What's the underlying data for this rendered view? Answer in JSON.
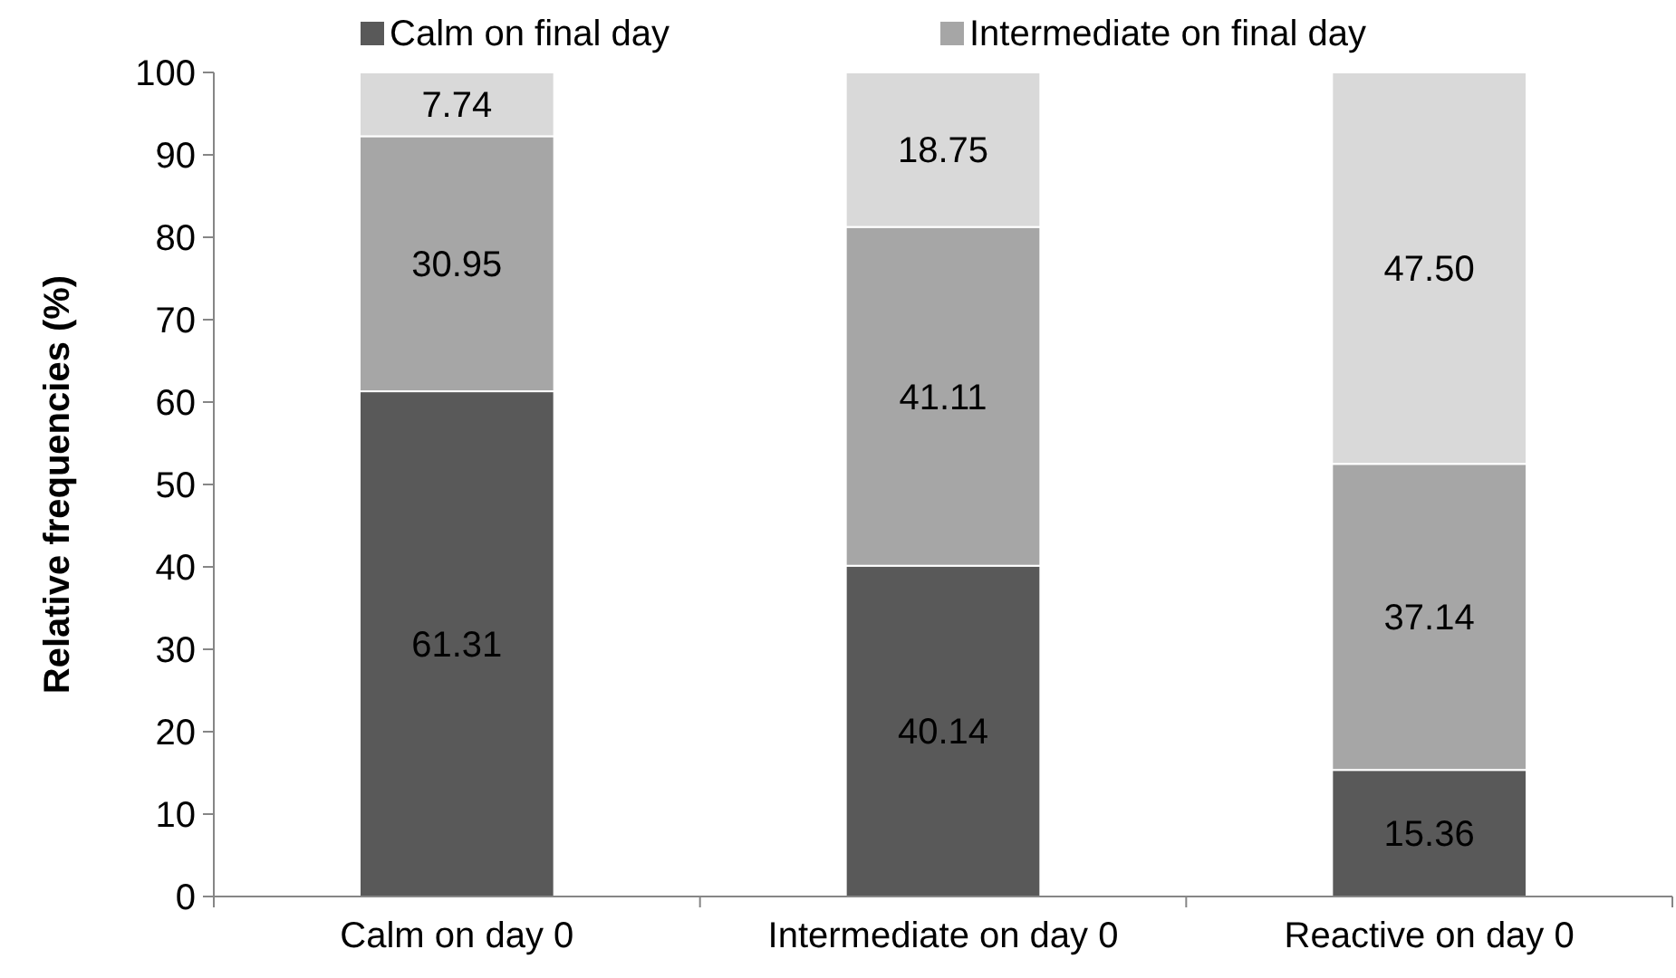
{
  "chart_data": {
    "type": "bar",
    "stacked": true,
    "ylabel": "Relative frequencies (%)",
    "categories": [
      "Calm on day 0",
      "Intermediate on day 0",
      "Reactive on day 0"
    ],
    "series": [
      {
        "name": "Calm on final day",
        "color": "#595959",
        "values": [
          61.31,
          40.14,
          15.36
        ],
        "value_labels": [
          "61.31",
          "40.14",
          "15.36"
        ]
      },
      {
        "name": "Intermediate on final day",
        "color": "#a6a6a6",
        "values": [
          30.95,
          41.11,
          37.14
        ],
        "value_labels": [
          "30.95",
          "41.11",
          "37.14"
        ]
      },
      {
        "color": "#d9d9d9",
        "values": [
          7.74,
          18.75,
          47.5
        ],
        "value_labels": [
          "7.74",
          "18.75",
          "47.50"
        ]
      }
    ],
    "ylim": [
      0,
      100
    ],
    "yticks": [
      0,
      10,
      20,
      30,
      40,
      50,
      60,
      70,
      80,
      90,
      100
    ],
    "legend": "top",
    "grid": false
  }
}
